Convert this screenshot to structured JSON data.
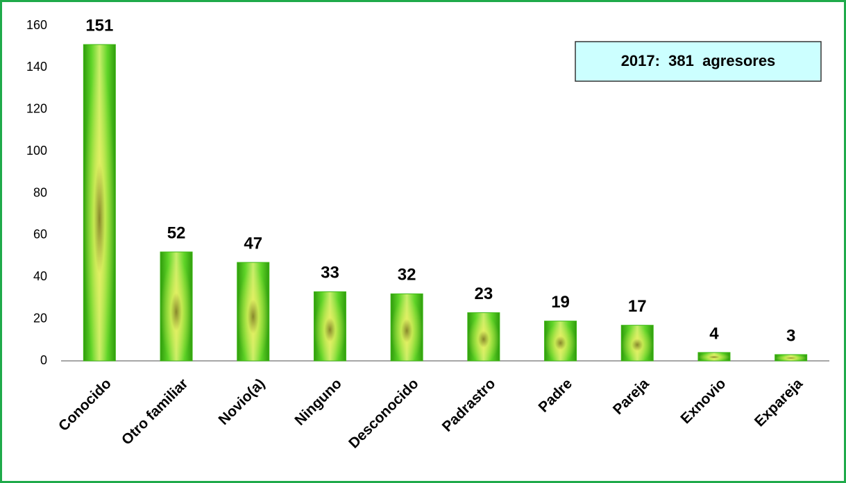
{
  "chart_data": {
    "type": "bar",
    "annotation": "2017:  381  agresores",
    "categories": [
      "Conocido",
      "Otro familiar",
      "Novio(a)",
      "Ninguno",
      "Desconocido",
      "Padrastro",
      "Padre",
      "Pareja",
      "Exnovio",
      "Expareja"
    ],
    "values": [
      151,
      52,
      47,
      33,
      32,
      23,
      19,
      17,
      4,
      3
    ],
    "color": "#3cb814",
    "ylim": [
      0,
      160
    ],
    "yticks": [
      0,
      20,
      40,
      60,
      80,
      100,
      120,
      140,
      160
    ],
    "grid": false
  }
}
